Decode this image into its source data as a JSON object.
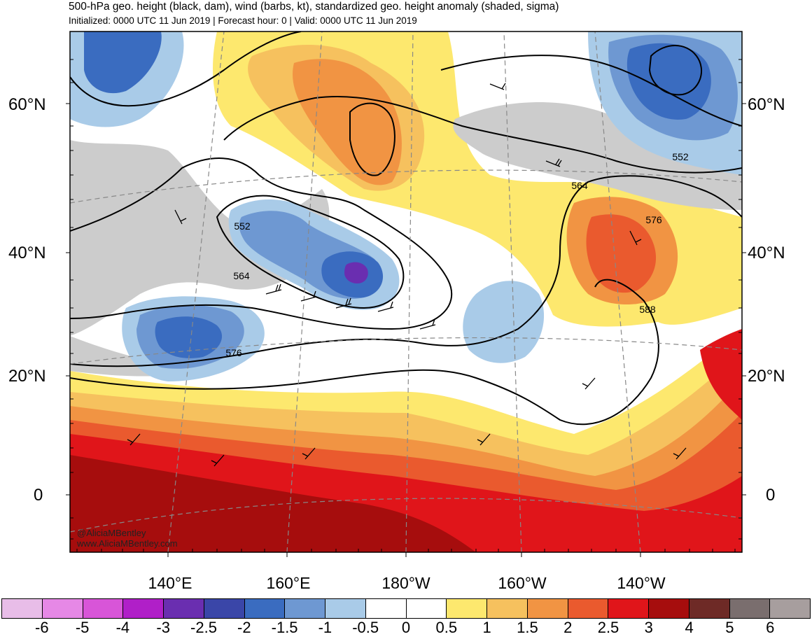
{
  "header": {
    "title": "500-hPa geo. height (black, dam), wind (barbs, kt), standardized geo. height anomaly (shaded, sigma)",
    "subtitle": "Initialized: 0000 UTC 11 Jun 2019 | Forecast hour: 0 | Valid: 0000 UTC 11 Jun 2019"
  },
  "map": {
    "lat_labels": [
      "60°N",
      "40°N",
      "20°N",
      "0"
    ],
    "lon_labels": [
      "140°E",
      "160°E",
      "180°W",
      "160°W",
      "140°W"
    ],
    "contour_labels": [
      "552",
      "552",
      "564",
      "564",
      "576",
      "576",
      "588"
    ],
    "credit": [
      "@AliciaMBentley",
      "www.AliciaMBentley.com"
    ]
  },
  "colorbar": {
    "tick_labels": [
      "-6",
      "-5",
      "-4",
      "-3",
      "-2.5",
      "-2",
      "-1.5",
      "-1",
      "-0.5",
      "0",
      "0.5",
      "1",
      "1.5",
      "2",
      "2.5",
      "3",
      "4",
      "5",
      "6"
    ],
    "colors": [
      "#e8bde8",
      "#e688e6",
      "#d855d8",
      "#b01fc8",
      "#6a2eb0",
      "#3a46a8",
      "#3a6cc0",
      "#6e98d2",
      "#a9cbe8",
      "#ffffff",
      "#ffffff",
      "#fde86e",
      "#f6c15e",
      "#f19443",
      "#ea5a2e",
      "#e0151a",
      "#a60d0d",
      "#6e2a26",
      "#7a6e6e",
      "#a79e9e"
    ]
  },
  "colors": {
    "high_anomaly": "#e0151a",
    "low_anomaly": "#3a6cc0",
    "land_gray": "#cccccc",
    "contour": "#000000"
  }
}
